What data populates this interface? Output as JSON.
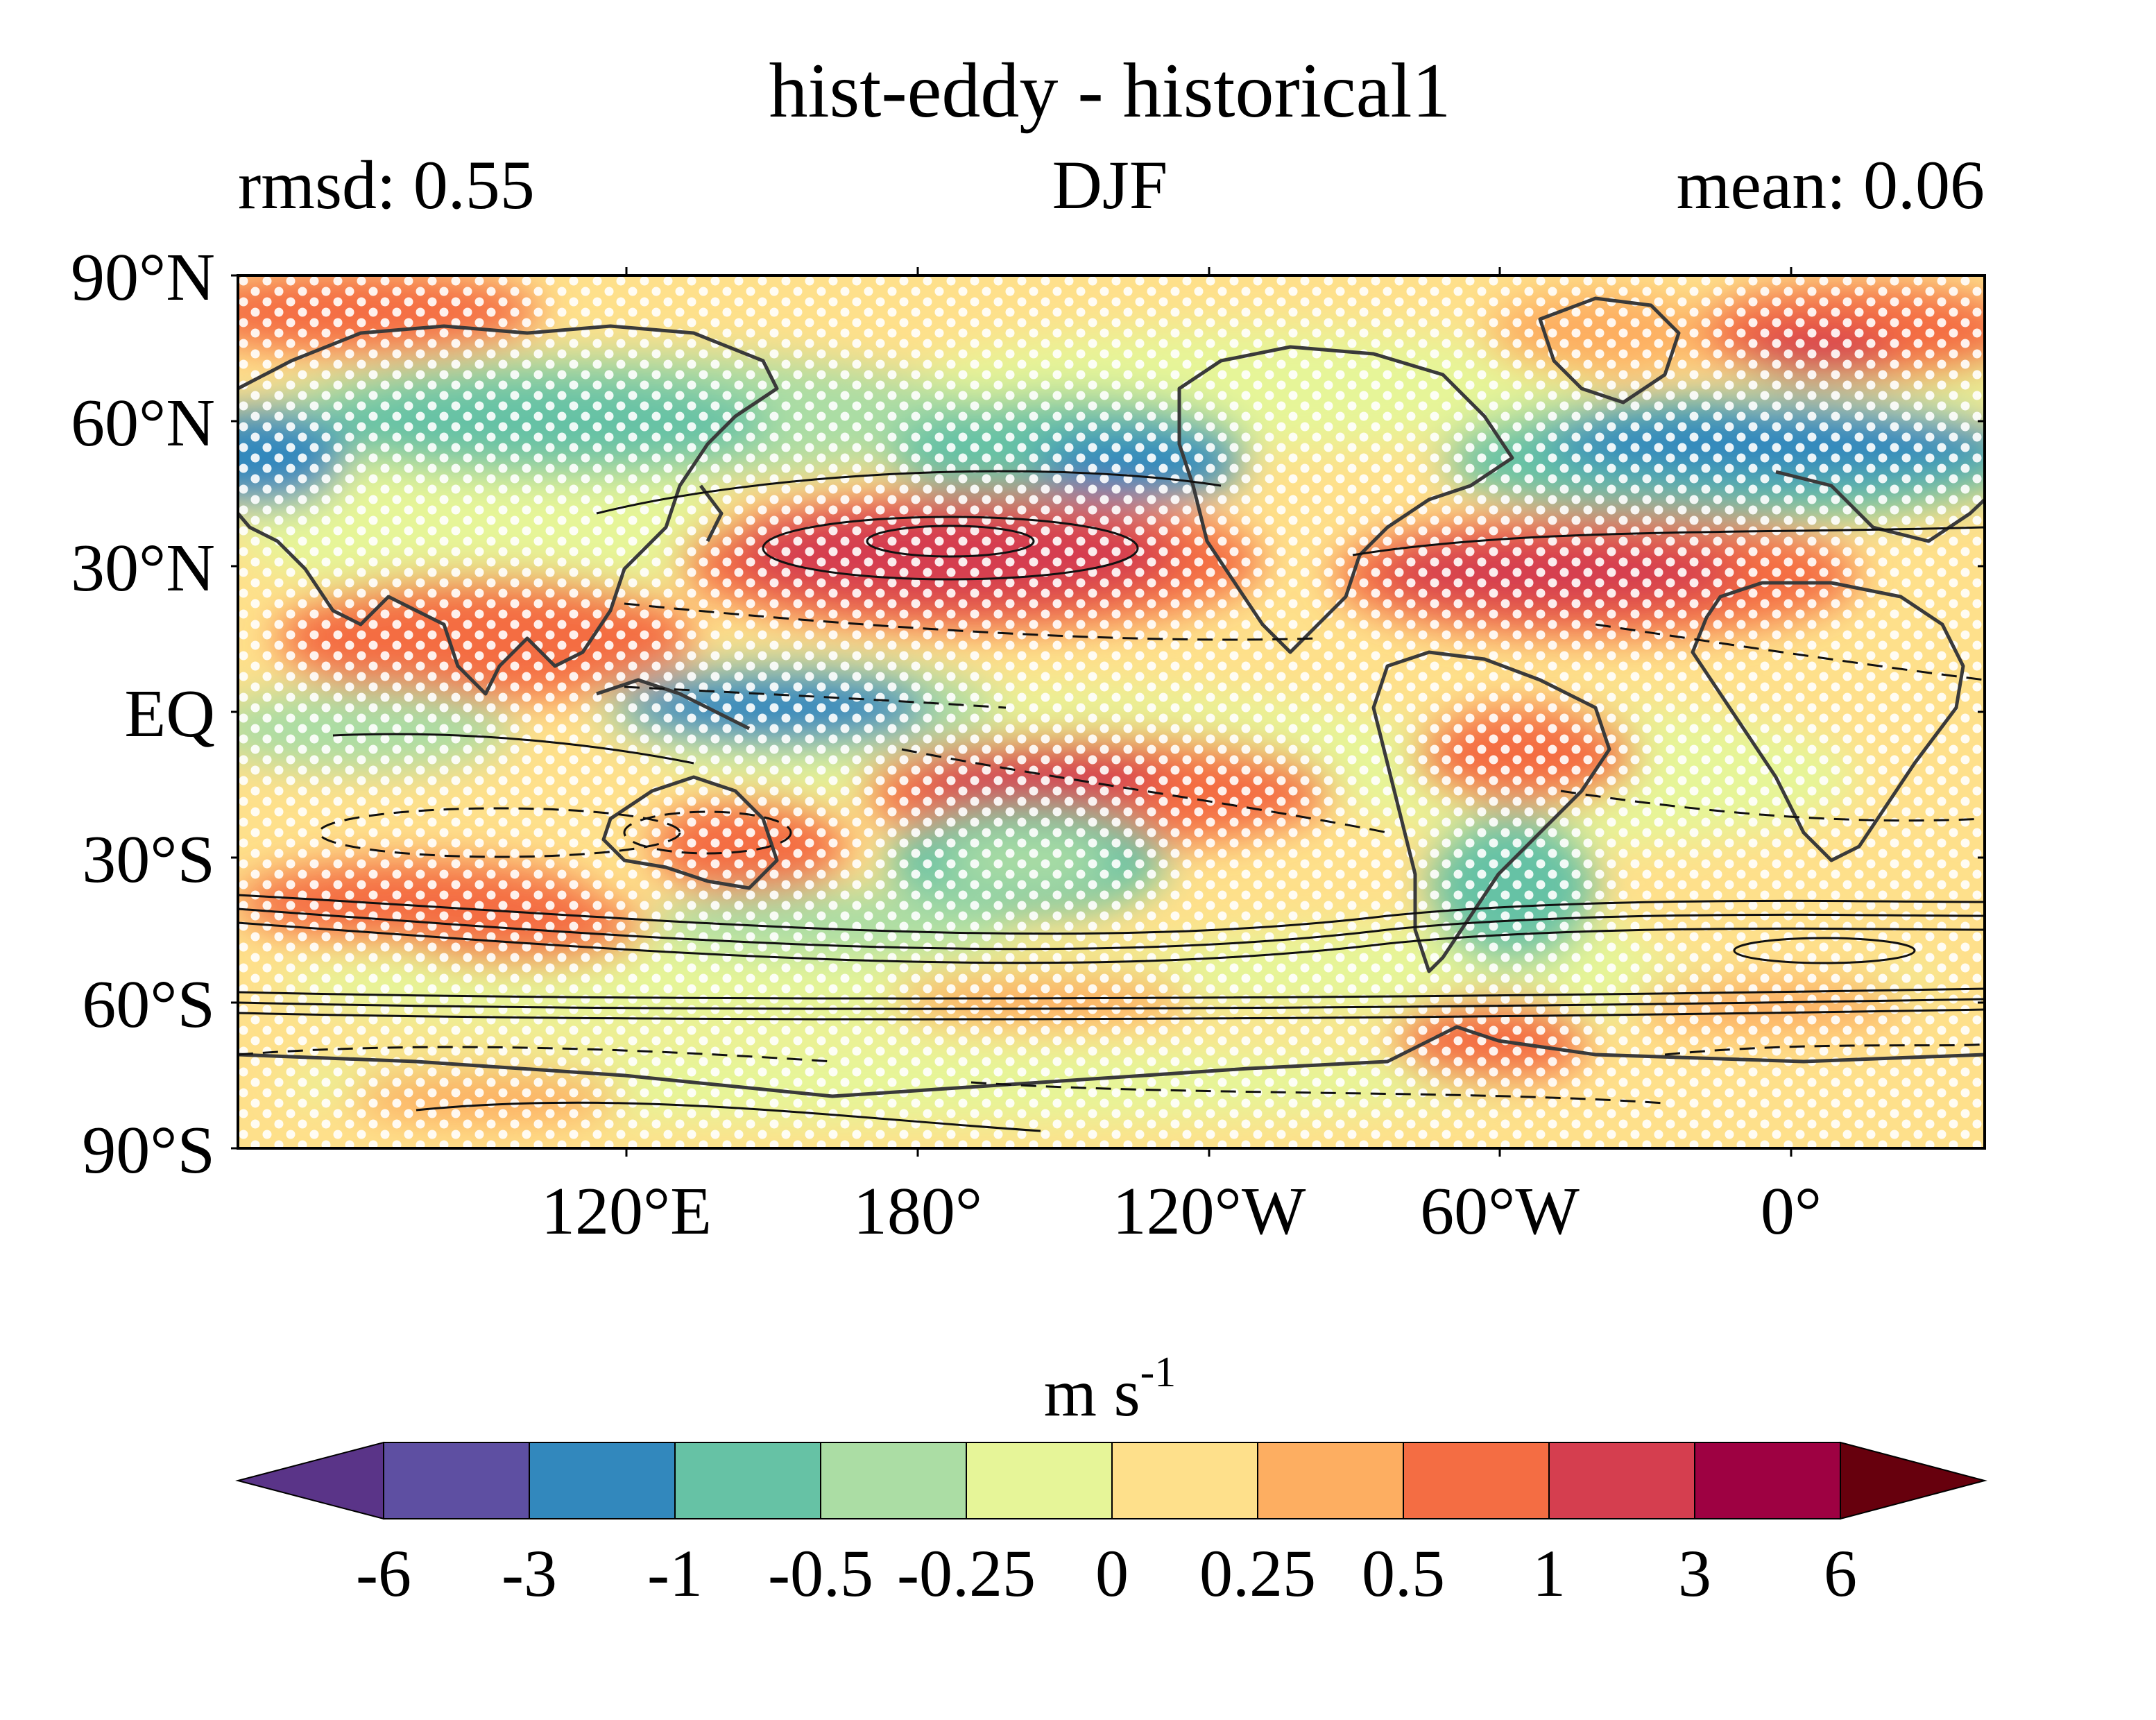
{
  "title": "hist-eddy - historical1",
  "subtitle_left": "rmsd: 0.55",
  "subtitle_center": "DJF",
  "subtitle_right": "mean: 0.06",
  "map": {
    "lat_ticks": [
      "90°N",
      "60°N",
      "30°N",
      "EQ",
      "30°S",
      "60°S",
      "90°S"
    ],
    "lon_ticks": [
      "120°E",
      "180°",
      "120°W",
      "60°W",
      "0°"
    ],
    "lon_range_deg_east": [
      40,
      400
    ],
    "lat_range": [
      -90,
      90
    ],
    "stippling": "white dots",
    "contours": "black solid (positive) and dashed (negative)",
    "coastlines": "dark gray"
  },
  "colorbar": {
    "unit_base": "m s",
    "unit_exp": "-1",
    "labels": [
      "-6",
      "-3",
      "-1",
      "-0.5",
      "-0.25",
      "0",
      "0.25",
      "0.5",
      "1",
      "3",
      "6"
    ],
    "bins": [
      "#6a3d91",
      "#5e4fa2",
      "#3288bd",
      "#66c2a5",
      "#abdda4",
      "#e6f598",
      "#fee08b",
      "#fdae61",
      "#f46d43",
      "#d53e4f",
      "#9e0142"
    ],
    "colors": {
      "under": "#5a3488",
      "over": "#67000d"
    }
  }
}
